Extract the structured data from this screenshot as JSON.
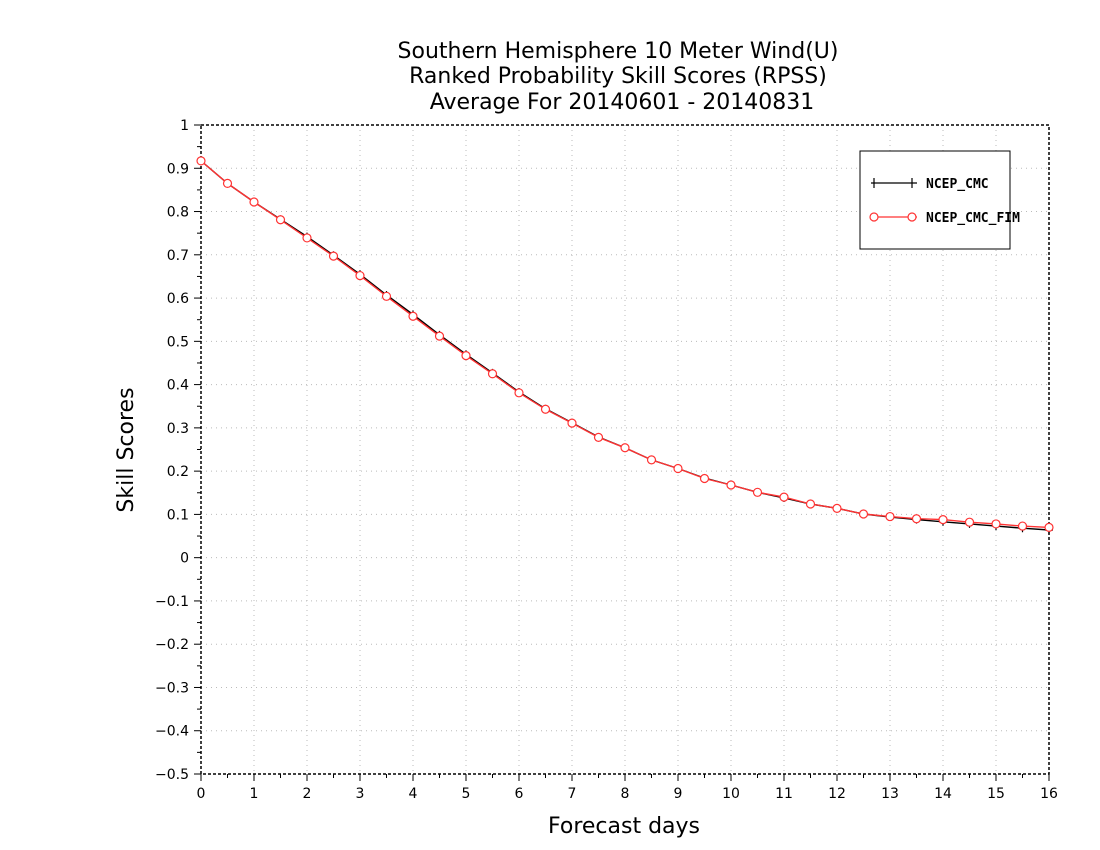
{
  "chart_data": {
    "type": "line",
    "title": [
      "Southern Hemisphere 10 Meter Wind(U)",
      "Ranked Probability Skill Scores (RPSS)",
      "Average For 20140601 - 20140831"
    ],
    "xlabel": "Forecast days",
    "ylabel": "Skill Scores",
    "xlim": [
      0,
      16
    ],
    "ylim": [
      -0.5,
      1
    ],
    "x_ticks": [
      "0",
      "1",
      "2",
      "3",
      "4",
      "5",
      "6",
      "7",
      "8",
      "9",
      "10",
      "11",
      "12",
      "13",
      "14",
      "15",
      "16"
    ],
    "y_ticks": [
      "−0.5",
      "−0.4",
      "−0.3",
      "−0.2",
      "−0.1",
      "0",
      "0.1",
      "0.2",
      "0.3",
      "0.4",
      "0.5",
      "0.6",
      "0.7",
      "0.8",
      "0.9",
      "1"
    ],
    "grid": true,
    "legend_position": "top-right",
    "x": [
      0,
      0.5,
      1,
      1.5,
      2,
      2.5,
      3,
      3.5,
      4,
      4.5,
      5,
      5.5,
      6,
      6.5,
      7,
      7.5,
      8,
      8.5,
      9,
      9.5,
      10,
      10.5,
      11,
      11.5,
      12,
      12.5,
      13,
      13.5,
      14,
      14.5,
      15,
      15.5,
      16
    ],
    "series": [
      {
        "name": "NCEP_CMC",
        "color": "#000000",
        "marker": "plus",
        "values": [
          0.917,
          0.865,
          0.822,
          0.782,
          0.742,
          0.699,
          0.655,
          0.607,
          0.562,
          0.515,
          0.47,
          0.427,
          0.383,
          0.344,
          0.312,
          0.279,
          0.254,
          0.226,
          0.206,
          0.184,
          0.168,
          0.151,
          0.138,
          0.124,
          0.114,
          0.101,
          0.094,
          0.088,
          0.083,
          0.078,
          0.073,
          0.068,
          0.064
        ]
      },
      {
        "name": "NCEP_CMC_FIM",
        "color": "#ff3333",
        "marker": "circle",
        "values": [
          0.917,
          0.865,
          0.822,
          0.781,
          0.739,
          0.697,
          0.652,
          0.604,
          0.558,
          0.512,
          0.467,
          0.425,
          0.381,
          0.343,
          0.311,
          0.278,
          0.254,
          0.226,
          0.206,
          0.183,
          0.168,
          0.151,
          0.14,
          0.124,
          0.114,
          0.101,
          0.095,
          0.09,
          0.088,
          0.082,
          0.078,
          0.073,
          0.07
        ]
      }
    ]
  }
}
